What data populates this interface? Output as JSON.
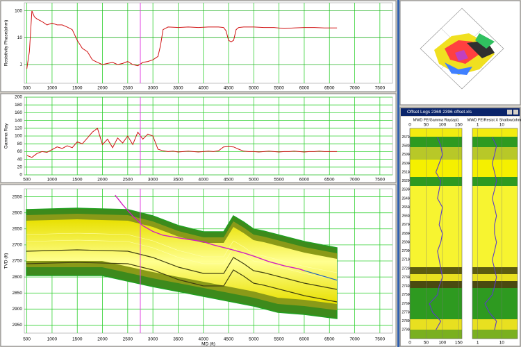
{
  "chart_data": [
    {
      "type": "line",
      "y_label": "Resistivity Phase(ohm)",
      "color": "#d01010",
      "log_y": true,
      "grid": true,
      "x": [
        500,
        550,
        600,
        650,
        700,
        800,
        900,
        1000,
        1100,
        1200,
        1300,
        1400,
        1500,
        1600,
        1700,
        1800,
        1900,
        2000,
        2100,
        2200,
        2300,
        2400,
        2500,
        2600,
        2700,
        2800,
        2900,
        3000,
        3100,
        3150,
        3200,
        3300,
        3500,
        3700,
        3900,
        4100,
        4300,
        4400,
        4450,
        4500,
        4550,
        4600,
        4650,
        4700,
        4800,
        5000,
        5200,
        5400,
        5600,
        5800,
        6000,
        6200,
        6400,
        6650
      ],
      "values": [
        0.7,
        3,
        100,
        60,
        50,
        40,
        30,
        35,
        30,
        30,
        25,
        20,
        8,
        4,
        3,
        1.5,
        1.2,
        1,
        1.1,
        1.2,
        1,
        1.1,
        1.3,
        1,
        0.9,
        1.2,
        1.3,
        1.5,
        2,
        5,
        20,
        25,
        24,
        25,
        24,
        25,
        25,
        24,
        18,
        8,
        7,
        8,
        20,
        24,
        25,
        25,
        24,
        24,
        22,
        23,
        24,
        24,
        23,
        23
      ],
      "xlim": [
        450,
        7750
      ],
      "xticks": [
        500,
        1000,
        1500,
        2000,
        2500,
        3000,
        3500,
        4000,
        4500,
        5000,
        5500,
        6000,
        6500,
        7000,
        7500
      ],
      "ylim": [
        0.2,
        200
      ],
      "yticks": [
        1,
        10,
        100
      ],
      "cursor_x": 2750
    },
    {
      "type": "line",
      "y_label": "Gamma Ray",
      "color": "#d01010",
      "grid": true,
      "x": [
        500,
        600,
        700,
        800,
        900,
        1000,
        1100,
        1200,
        1300,
        1400,
        1500,
        1600,
        1700,
        1800,
        1900,
        2000,
        2100,
        2200,
        2300,
        2400,
        2500,
        2600,
        2700,
        2800,
        2900,
        3000,
        3100,
        3200,
        3300,
        3400,
        3500,
        3600,
        3700,
        3800,
        3900,
        4000,
        4100,
        4200,
        4300,
        4400,
        4500,
        4600,
        4700,
        4800,
        4900,
        5000,
        5100,
        5200,
        5300,
        5400,
        5500,
        5600,
        5700,
        5800,
        5900,
        6000,
        6100,
        6200,
        6300,
        6400,
        6500,
        6600,
        6650
      ],
      "values": [
        50,
        45,
        55,
        60,
        58,
        65,
        72,
        68,
        75,
        70,
        85,
        80,
        95,
        110,
        120,
        78,
        92,
        70,
        95,
        82,
        100,
        78,
        110,
        92,
        105,
        100,
        66,
        62,
        60,
        61,
        59,
        60,
        61,
        60,
        59,
        60,
        61,
        60,
        62,
        72,
        73,
        72,
        66,
        61,
        60,
        60,
        59,
        60,
        61,
        60,
        59,
        60,
        60,
        61,
        60,
        59,
        60,
        60,
        61,
        60,
        60,
        60,
        60
      ],
      "xlim": [
        450,
        7750
      ],
      "xticks": [
        500,
        1000,
        1500,
        2000,
        2500,
        3000,
        3500,
        4000,
        4500,
        5000,
        5500,
        6000,
        6500,
        7000,
        7500
      ],
      "ylim": [
        0,
        200
      ],
      "yticks": [
        0,
        20,
        40,
        60,
        80,
        100,
        120,
        140,
        160,
        180,
        200
      ],
      "cursor_x": 2750
    },
    {
      "type": "section",
      "y_label": "TVD (ft)",
      "x_label": "MD (ft)",
      "color": "#d020c0",
      "grid": true,
      "x": [
        2250,
        2400,
        2600,
        2800,
        3000,
        3200,
        3500,
        3800,
        4000,
        4200,
        4500,
        4800,
        5000,
        5300,
        5600,
        5900,
        6000
      ],
      "values": [
        2545,
        2575,
        2610,
        2640,
        2658,
        2670,
        2678,
        2685,
        2690,
        2700,
        2712,
        2725,
        2735,
        2752,
        2765,
        2775,
        2780
      ],
      "projection": {
        "color": "#1f5fbf",
        "x": [
          6000,
          6650
        ],
        "values": [
          2780,
          2810
        ]
      },
      "xlim": [
        450,
        7750
      ],
      "xticks": [
        500,
        1000,
        1500,
        2000,
        2500,
        3000,
        3500,
        4000,
        4500,
        5000,
        5500,
        6000,
        6500,
        7000,
        7500
      ],
      "ylim": [
        2525,
        2975
      ],
      "yticks": [
        2550,
        2600,
        2650,
        2700,
        2750,
        2800,
        2850,
        2900,
        2950
      ],
      "cursor_x": 2750
    },
    {
      "type": "log_track",
      "title": "MWD FE/Gamma Ray(api)",
      "color": "#5a3cc8",
      "depths": [
        2570,
        2580,
        2590,
        2600,
        2610,
        2620,
        2630,
        2640,
        2650,
        2660,
        2670,
        2680,
        2690,
        2700,
        2710,
        2720,
        2730,
        2740,
        2750,
        2760,
        2770,
        2780,
        2790
      ],
      "values": [
        85,
        95,
        100,
        90,
        80,
        95,
        90,
        85,
        100,
        95,
        90,
        100,
        95,
        85,
        90,
        95,
        100,
        90,
        85,
        60,
        70,
        95,
        80
      ],
      "xlim": [
        0,
        160
      ],
      "xticks": [
        0,
        50,
        100,
        150
      ],
      "ylim": [
        2560,
        2800
      ],
      "yticks": [
        2570,
        2580,
        2590,
        2600,
        2610,
        2620,
        2630,
        2640,
        2650,
        2660,
        2670,
        2680,
        2690,
        2700,
        2710,
        2720,
        2730,
        2740,
        2750,
        2760,
        2770,
        2780,
        2790
      ]
    },
    {
      "type": "log_track",
      "title": "MWD FE/Resist X Shallow(ohm)",
      "color": "#5a3cc8",
      "log_x": true,
      "depths": [
        2570,
        2580,
        2590,
        2600,
        2610,
        2620,
        2630,
        2640,
        2650,
        2660,
        2670,
        2680,
        2690,
        2700,
        2710,
        2720,
        2730,
        2740,
        2750,
        2760,
        2770,
        2780,
        2790
      ],
      "values": [
        4,
        6,
        5,
        4,
        5,
        6,
        5,
        4,
        5,
        6,
        5,
        5,
        6,
        5,
        4,
        5,
        6,
        5,
        4,
        2,
        3,
        6,
        5
      ],
      "xlim": [
        0.6,
        45
      ],
      "xticks": [
        1,
        10
      ],
      "ylim": [
        2560,
        2800
      ]
    }
  ],
  "window": {
    "title": "Offset Logs 2369 2396 offset.xls"
  }
}
